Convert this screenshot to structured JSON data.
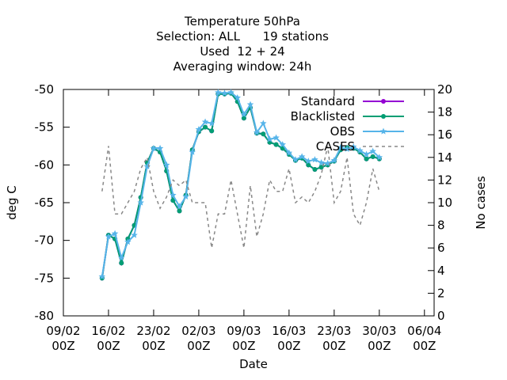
{
  "chart_data": {
    "type": "line",
    "title": [
      "Temperature 50hPa",
      "Selection: ALL      19 stations",
      "Used  12 + 24",
      "Averaging window: 24h"
    ],
    "xlabel": "Date",
    "ylabel": "deg C",
    "y2label": "No cases",
    "legend": "top-right",
    "xlim": [
      "09/02 00Z",
      "07/04 12Z"
    ],
    "xticks": [
      "09/02 00Z",
      "16/02 00Z",
      "23/02 00Z",
      "02/03 00Z",
      "09/03 00Z",
      "16/03 00Z",
      "23/03 00Z",
      "30/03 00Z",
      "06/04 00Z"
    ],
    "ylim": [
      -80,
      -50
    ],
    "yticks": [
      -80,
      -75,
      -70,
      -65,
      -60,
      -55,
      -50
    ],
    "y2lim": [
      0,
      20
    ],
    "y2ticks": [
      0,
      2,
      4,
      6,
      8,
      10,
      12,
      14,
      16,
      18,
      20
    ],
    "x": [
      "15/02 00Z",
      "16/02 00Z",
      "17/02 00Z",
      "18/02 00Z",
      "19/02 00Z",
      "20/02 00Z",
      "21/02 00Z",
      "22/02 00Z",
      "23/02 00Z",
      "24/02 00Z",
      "25/02 00Z",
      "26/02 00Z",
      "27/02 00Z",
      "28/02 00Z",
      "01/03 00Z",
      "02/03 00Z",
      "03/03 00Z",
      "04/03 00Z",
      "05/03 00Z",
      "06/03 00Z",
      "07/03 00Z",
      "08/03 00Z",
      "09/03 00Z",
      "10/03 00Z",
      "11/03 00Z",
      "12/03 00Z",
      "13/03 00Z",
      "14/03 00Z",
      "15/03 00Z",
      "16/03 00Z",
      "17/03 00Z",
      "18/03 00Z",
      "19/03 00Z",
      "20/03 00Z",
      "21/03 00Z",
      "22/03 00Z",
      "23/03 00Z",
      "24/03 00Z",
      "25/03 00Z",
      "26/03 00Z",
      "27/03 00Z",
      "28/03 00Z",
      "29/03 00Z",
      "30/03 00Z"
    ],
    "series": [
      {
        "name": "Standard",
        "color": "#9400d3",
        "marker": "circle",
        "values": [
          -75,
          -69.3,
          -69.8,
          -73,
          -69.8,
          -68,
          -64.3,
          -59.7,
          -57.8,
          -58.3,
          -60.8,
          -64.7,
          -66.1,
          -64,
          -58,
          -55.6,
          -55,
          -55.5,
          -50.6,
          -50.6,
          -50.5,
          -51.6,
          -53.8,
          -52.4,
          -55.8,
          -55.9,
          -57,
          -57.3,
          -57.8,
          -58.6,
          -59.4,
          -59.1,
          -60,
          -60.6,
          -60.3,
          -60,
          -59.5,
          -58,
          -57.7,
          -57.8,
          -58.3,
          -59.2,
          -58.9,
          -59.2
        ]
      },
      {
        "name": "Blacklisted",
        "color": "#009e73",
        "marker": "circle",
        "values": [
          -75,
          -69.3,
          -69.8,
          -73,
          -69.8,
          -68,
          -64.3,
          -59.7,
          -57.8,
          -58.3,
          -60.8,
          -64.7,
          -66.1,
          -64,
          -58,
          -55.6,
          -55,
          -55.5,
          -50.6,
          -50.6,
          -50.5,
          -51.6,
          -53.8,
          -52.4,
          -55.8,
          -55.9,
          -57,
          -57.3,
          -57.8,
          -58.6,
          -59.4,
          -59.1,
          -60,
          -60.6,
          -60.3,
          -60,
          -59.5,
          -58,
          -57.7,
          -57.8,
          -58.3,
          -59.2,
          -58.9,
          -59.2
        ]
      },
      {
        "name": "OBS",
        "color": "#56b4e9",
        "marker": "star",
        "values": [
          -74.8,
          -69.5,
          -69.1,
          -72.3,
          -70.2,
          -69.3,
          -65,
          -60.2,
          -57.8,
          -57.8,
          -60,
          -64,
          -65.5,
          -64.2,
          -58.3,
          -55.3,
          -54.3,
          -54.5,
          -50.4,
          -50.5,
          -50.4,
          -51.1,
          -53.3,
          -52,
          -55.7,
          -54.5,
          -56.6,
          -56.4,
          -57.3,
          -58.4,
          -59.3,
          -58.9,
          -59.5,
          -59.3,
          -59.7,
          -59.8,
          -59.4,
          -57.7,
          -57.9,
          -57.6,
          -58.1,
          -58.6,
          -58.2,
          -59
        ]
      },
      {
        "name": "CASES",
        "color": "#888888",
        "axis": "y2",
        "dashed": true,
        "values": [
          11,
          15,
          9,
          9,
          10,
          11,
          13,
          14,
          11,
          9.5,
          10.5,
          12,
          11.5,
          12,
          10,
          10,
          10,
          6,
          9,
          9,
          12,
          9,
          6,
          11.5,
          7,
          9,
          12,
          11,
          11,
          13,
          10,
          10.5,
          10,
          11,
          12.5,
          15,
          10,
          11,
          14,
          9,
          8,
          10,
          13,
          11
        ]
      }
    ]
  }
}
